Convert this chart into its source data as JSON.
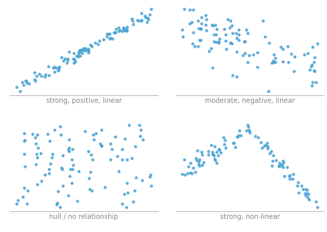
{
  "dot_color": "#4ba3d3",
  "dot_size": 10,
  "dot_alpha": 0.9,
  "background_color": "#ffffff",
  "labels": [
    "strong, positive, linear",
    "moderate, negative, linear",
    "null / no relationship",
    "strong, non-linear"
  ],
  "label_fontsize": 7,
  "label_color": "#888888",
  "spine_color": "#bbbbbb",
  "n_points": 100,
  "seed": 7
}
